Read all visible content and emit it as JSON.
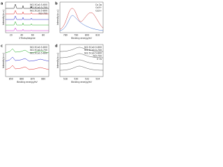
{
  "panels": [
    {
      "label": "a",
      "x_label": "2Theta/degree",
      "y_label": "Intensity(a.u.)",
      "x_ticks": [
        "20",
        "40",
        "60",
        "80"
      ],
      "legend": [
        "Ni2.5Co0.5-600",
        "Ni2.5Co0.5-700",
        "Ni2.5Co0.5-800",
        "Ni3-700"
      ]
    },
    {
      "label": "b",
      "x_label": "Binding energy/eV",
      "y_label": "Intensity(a.u.)",
      "x_ticks": [
        "780",
        "790",
        "800",
        "810"
      ],
      "legend": [
        "Co 2p",
        "Co3+",
        "Co2+"
      ]
    },
    {
      "label": "c",
      "x_label": "Binding energy/eV",
      "y_label": "Intensity(a.u.)",
      "x_ticks": [
        "850",
        "860",
        "870",
        "880"
      ],
      "legend": [
        "Ni2.5Co0.5-800",
        "Ni2.5Co0.5-700",
        "Ni2.5Co0.5-600"
      ]
    },
    {
      "label": "d",
      "x_label": "Binding energy/eV",
      "y_label": "Intensity(a.u.)",
      "x_ticks": [
        "528",
        "530",
        "532",
        "534"
      ],
      "legend": [
        "Ni2.5Co0.5-800",
        "Ni2.5Co0.5-700",
        "Ni2.5Co0.5-600",
        "Ni3-700",
        "O 1s"
      ]
    }
  ]
}
